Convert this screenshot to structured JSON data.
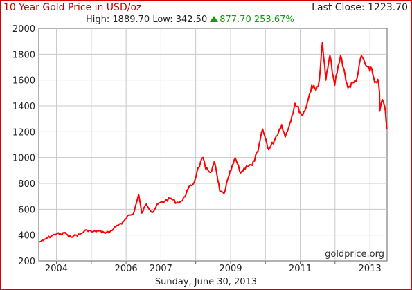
{
  "header": {
    "title": "10 Year Gold Price in USD/oz",
    "last_close_label": "Last Close:",
    "last_close_value": "1223.70",
    "high_label": "High:",
    "high_value": "1889.70",
    "low_label": "Low:",
    "low_value": "342.50",
    "change_value": "877.70",
    "change_percent": "253.67%",
    "change_icon": "triangle-up-icon"
  },
  "watermark": "goldprice.org",
  "date_label": "Sunday, June 30, 2013",
  "colors": {
    "line": "#ff0000",
    "border": "#d60000",
    "title": "#cc0000",
    "positive": "#119911",
    "grid": "#c8c8c8"
  },
  "chart_data": {
    "type": "line",
    "title": "10 Year Gold Price in USD/oz",
    "xlabel": "",
    "ylabel": "",
    "ylim": [
      200,
      2000
    ],
    "xlim": [
      "2003-06-30",
      "2013-06-30"
    ],
    "grid": true,
    "y_ticks": [
      "200",
      "400",
      "600",
      "800",
      "1000",
      "1200",
      "1400",
      "1600",
      "1800",
      "2000"
    ],
    "x_ticks": [
      {
        "label": "2004",
        "date": "2004-01-01"
      },
      {
        "label": "2006",
        "date": "2006-01-01"
      },
      {
        "label": "2007",
        "date": "2007-01-01"
      },
      {
        "label": "2009",
        "date": "2009-01-01"
      },
      {
        "label": "2011",
        "date": "2011-01-01"
      },
      {
        "label": "2013",
        "date": "2013-01-01"
      }
    ],
    "x_gridlines": [
      "2004-01-01",
      "2005-01-01",
      "2006-01-01",
      "2007-01-01",
      "2008-01-01",
      "2009-01-01",
      "2010-01-01",
      "2011-01-01",
      "2012-01-01",
      "2013-01-01"
    ],
    "series": [
      {
        "points": [
          [
            "2003-06-30",
            346
          ],
          [
            "2003-08-15",
            358
          ],
          [
            "2003-10-01",
            380
          ],
          [
            "2003-11-15",
            395
          ],
          [
            "2004-01-10",
            412
          ],
          [
            "2004-02-20",
            405
          ],
          [
            "2004-04-01",
            420
          ],
          [
            "2004-05-10",
            385
          ],
          [
            "2004-07-01",
            395
          ],
          [
            "2004-09-01",
            405
          ],
          [
            "2004-11-15",
            440
          ],
          [
            "2005-01-15",
            425
          ],
          [
            "2005-03-15",
            432
          ],
          [
            "2005-05-15",
            420
          ],
          [
            "2005-07-15",
            425
          ],
          [
            "2005-09-15",
            465
          ],
          [
            "2005-11-15",
            485
          ],
          [
            "2006-01-15",
            550
          ],
          [
            "2006-03-15",
            560
          ],
          [
            "2006-04-20",
            650
          ],
          [
            "2006-05-12",
            715
          ],
          [
            "2006-06-14",
            570
          ],
          [
            "2006-08-01",
            640
          ],
          [
            "2006-10-05",
            575
          ],
          [
            "2006-12-01",
            640
          ],
          [
            "2007-02-15",
            665
          ],
          [
            "2007-04-15",
            685
          ],
          [
            "2007-06-15",
            650
          ],
          [
            "2007-08-15",
            665
          ],
          [
            "2007-10-15",
            760
          ],
          [
            "2007-12-15",
            805
          ],
          [
            "2008-01-15",
            895
          ],
          [
            "2008-03-17",
            1000
          ],
          [
            "2008-04-15",
            910
          ],
          [
            "2008-06-15",
            890
          ],
          [
            "2008-07-15",
            970
          ],
          [
            "2008-09-10",
            740
          ],
          [
            "2008-10-24",
            720
          ],
          [
            "2008-12-15",
            860
          ],
          [
            "2009-02-20",
            995
          ],
          [
            "2009-04-15",
            880
          ],
          [
            "2009-06-15",
            935
          ],
          [
            "2009-08-15",
            940
          ],
          [
            "2009-10-15",
            1050
          ],
          [
            "2009-12-03",
            1220
          ],
          [
            "2010-02-05",
            1060
          ],
          [
            "2010-04-15",
            1150
          ],
          [
            "2010-06-20",
            1255
          ],
          [
            "2010-07-28",
            1160
          ],
          [
            "2010-09-15",
            1270
          ],
          [
            "2010-11-08",
            1420
          ],
          [
            "2011-01-25",
            1325
          ],
          [
            "2011-03-15",
            1420
          ],
          [
            "2011-05-02",
            1560
          ],
          [
            "2011-06-15",
            1520
          ],
          [
            "2011-07-20",
            1600
          ],
          [
            "2011-08-22",
            1890
          ],
          [
            "2011-09-26",
            1600
          ],
          [
            "2011-11-08",
            1790
          ],
          [
            "2011-12-29",
            1560
          ],
          [
            "2012-02-28",
            1790
          ],
          [
            "2012-04-15",
            1640
          ],
          [
            "2012-05-16",
            1540
          ],
          [
            "2012-07-15",
            1580
          ],
          [
            "2012-08-20",
            1620
          ],
          [
            "2012-10-04",
            1790
          ],
          [
            "2012-11-15",
            1720
          ],
          [
            "2012-12-31",
            1670
          ],
          [
            "2013-01-20",
            1690
          ],
          [
            "2013-02-20",
            1580
          ],
          [
            "2013-03-25",
            1605
          ],
          [
            "2013-04-12",
            1500
          ],
          [
            "2013-04-15",
            1360
          ],
          [
            "2013-05-10",
            1450
          ],
          [
            "2013-06-05",
            1395
          ],
          [
            "2013-06-20",
            1280
          ],
          [
            "2013-06-28",
            1224
          ]
        ]
      }
    ]
  }
}
